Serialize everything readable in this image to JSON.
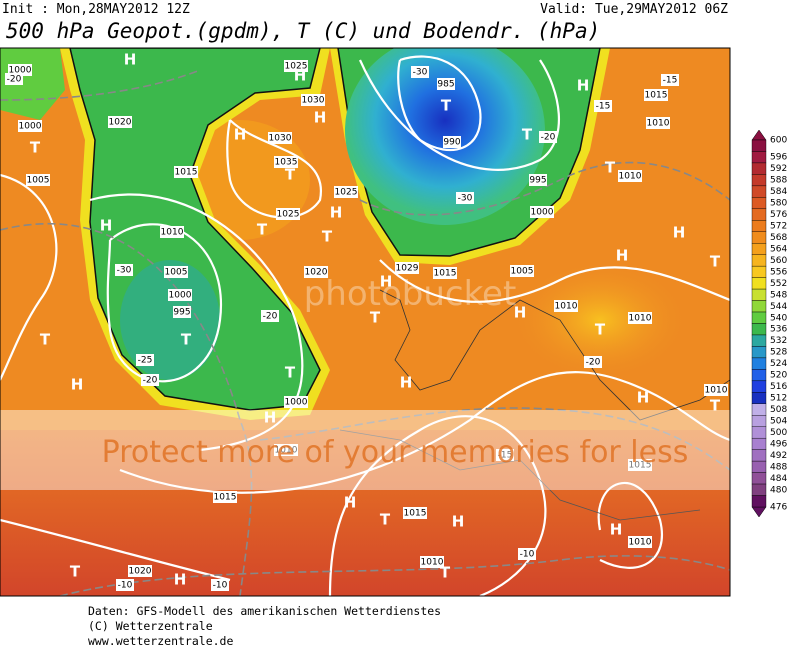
{
  "header": {
    "init": "Init : Mon,28MAY2012 12Z",
    "valid": "Valid: Tue,29MAY2012 06Z",
    "title": "500 hPa Geopot.(gpdm), T (C) und Bodendr. (hPa)"
  },
  "colorbar": {
    "labels": [
      "600",
      "596",
      "592",
      "588",
      "584",
      "580",
      "576",
      "572",
      "568",
      "564",
      "560",
      "556",
      "552",
      "548",
      "544",
      "540",
      "536",
      "532",
      "528",
      "524",
      "520",
      "516",
      "512",
      "508",
      "504",
      "500",
      "496",
      "492",
      "488",
      "484",
      "480",
      "476"
    ],
    "colors": [
      "#8a1040",
      "#a01a40",
      "#b22a30",
      "#c43a2a",
      "#d04a28",
      "#dc5a24",
      "#e46a20",
      "#ec7c1c",
      "#f08c1c",
      "#f4a01c",
      "#f6b41e",
      "#f8c820",
      "#f0e020",
      "#c8e030",
      "#90d838",
      "#60cc40",
      "#3cb84c",
      "#2ca8a0",
      "#2898c8",
      "#2080e0",
      "#2060e8",
      "#2040e0",
      "#1830c0",
      "#c0b0e8",
      "#b8a0e0",
      "#b090d8",
      "#a880d0",
      "#a070c0",
      "#9860b0",
      "#905098",
      "#804080",
      "#601060"
    ]
  },
  "map": {
    "labels": [
      "H",
      "1000",
      "-20",
      "1025",
      "H",
      "1020",
      "1030",
      "H",
      "1030",
      "H",
      "T",
      "1000",
      "1005",
      "1015",
      "1035",
      "T",
      "1025",
      "H",
      "T",
      "1025",
      "1010",
      "H",
      "1005",
      "1000",
      "995",
      "T",
      "-30",
      "T",
      "H",
      "-25",
      "-20",
      "T",
      "1000",
      "H",
      "1010",
      "1015",
      "H",
      "T",
      "1015",
      "H",
      "T",
      "1010",
      "H",
      "T",
      "1020",
      "-10",
      "-10",
      "985",
      "T",
      "990",
      "-30",
      "T",
      "-20",
      "995",
      "1000",
      "-30",
      "H",
      "1010",
      "-15",
      "H",
      "T",
      "H",
      "1010",
      "1010",
      "T",
      "-20",
      "H",
      "H",
      "T",
      "1010",
      "-15",
      "1015",
      "H",
      "1010",
      "-10",
      "T",
      "H",
      "1020",
      "-20",
      "T",
      "1029",
      "1015",
      "1005",
      "H",
      "T",
      "1010",
      "1015",
      "-15"
    ]
  },
  "watermark": {
    "logo": "photobucket",
    "banner": "Protect more of your memories for less"
  },
  "footer": [
    "Daten: GFS-Modell des amerikanischen Wetterdienstes",
    "(C) Wetterzentrale",
    "www.wetterzentrale.de"
  ]
}
